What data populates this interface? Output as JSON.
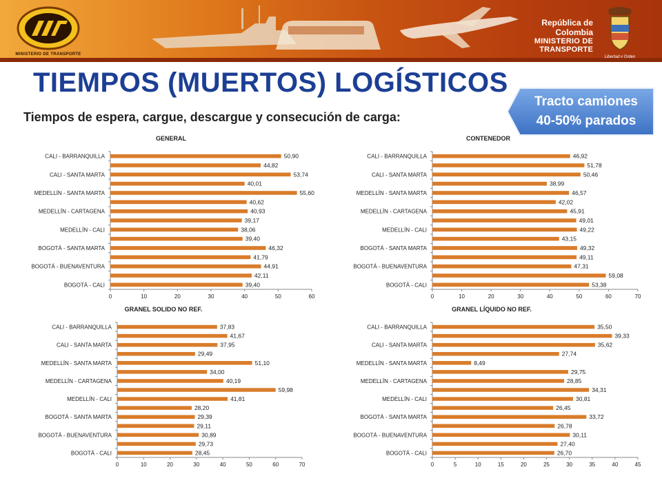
{
  "header": {
    "logo_caption": "MINISTERIO DE TRANSPORTE",
    "gov_line1": "República de Colombia",
    "gov_line2": "MINISTERIO DE TRANSPORTE",
    "crest_caption": "Libertad y Orden",
    "colors": {
      "banner": "#d4661a",
      "title": "#1c3f94",
      "bar": "#d97c2b",
      "callout": "#5b8fd4"
    }
  },
  "title": "TIEMPOS (MUERTOS) LOGÍSTICOS",
  "subtitle": "Tiempos de espera, cargue, descargue y consecución de carga:",
  "callout": {
    "line1": "Tracto camiones",
    "line2": "40-50% parados"
  },
  "chart_data": [
    {
      "type": "bar",
      "orientation": "horizontal",
      "title": "GENERAL",
      "categories": [
        "CALI - BARRANQUILLA",
        "",
        "CALI - SANTA MARTA",
        "",
        "MEDELLÍN - SANTA MARTA",
        "",
        "MEDELLÍN - CARTAGENA",
        "",
        "MEDELLÍN - CALI",
        "",
        "BOGOTÁ - SANTA MARTA",
        "",
        "BOGOTÁ - BUENAVENTURA",
        "",
        "BOGOTÁ - CALI"
      ],
      "values": [
        50.9,
        44.82,
        53.74,
        40.01,
        55.6,
        40.62,
        40.93,
        39.17,
        38.06,
        39.4,
        46.32,
        41.79,
        44.91,
        42.11,
        39.4
      ],
      "value_labels": [
        "50,90",
        "44,82",
        "53,74",
        "40,01",
        "55,60",
        "40,62",
        "40,93",
        "39,17",
        "38,06",
        "39,40",
        "46,32",
        "41,79",
        "44,91",
        "42,11",
        "39,40"
      ],
      "xlim": [
        0,
        60
      ],
      "xticks": [
        "0",
        "10",
        "20",
        "30",
        "40",
        "50",
        "60"
      ]
    },
    {
      "type": "bar",
      "orientation": "horizontal",
      "title": "CONTENEDOR",
      "categories": [
        "CALI - BARRANQUILLA",
        "",
        "CALI - SANTA MARTA",
        "",
        "MEDELLÍN - SANTA MARTA",
        "",
        "MEDELLÍN - CARTAGENA",
        "",
        "MEDELLÍN - CALI",
        "",
        "BOGOTÁ - SANTA MARTA",
        "",
        "BOGOTÁ - BUENAVENTURA",
        "",
        "BOGOTÁ - CALI"
      ],
      "values": [
        46.92,
        51.78,
        50.46,
        38.99,
        46.57,
        42.02,
        45.91,
        49.01,
        49.22,
        43.15,
        49.32,
        49.11,
        47.31,
        59.08,
        53.38
      ],
      "value_labels": [
        "46,92",
        "51,78",
        "50,46",
        "38,99",
        "46,57",
        "42,02",
        "45,91",
        "49,01",
        "49,22",
        "43,15",
        "49,32",
        "49,11",
        "47,31",
        "59,08",
        "53,38"
      ],
      "xlim": [
        0,
        70
      ],
      "xticks": [
        "0",
        "10",
        "20",
        "30",
        "40",
        "50",
        "60",
        "70"
      ]
    },
    {
      "type": "bar",
      "orientation": "horizontal",
      "title": "GRANEL SOLIDO NO REF.",
      "categories": [
        "CALI - BARRANQUILLA",
        "",
        "CALI - SANTA MARTA",
        "",
        "MEDELLÍN - SANTA MARTA",
        "",
        "MEDELLÍN - CARTAGENA",
        "",
        "MEDELLÍN - CALI",
        "",
        "BOGOTÁ - SANTA MARTA",
        "",
        "BOGOTÁ - BUENAVENTURA",
        "",
        "BOGOTÁ - CALI"
      ],
      "values": [
        37.83,
        41.67,
        37.95,
        29.49,
        51.1,
        34.0,
        40.19,
        59.98,
        41.81,
        28.2,
        29.39,
        29.11,
        30.89,
        29.73,
        28.45
      ],
      "value_labels": [
        "37,83",
        "41,67",
        "37,95",
        "29,49",
        "51,10",
        "34,00",
        "40,19",
        "59,98",
        "41,81",
        "28,20",
        "29,39",
        "29,11",
        "30,89",
        "29,73",
        "28,45"
      ],
      "xlim": [
        0,
        70
      ],
      "xticks": [
        "0",
        "10",
        "20",
        "30",
        "40",
        "50",
        "60",
        "70"
      ]
    },
    {
      "type": "bar",
      "orientation": "horizontal",
      "title": "GRANEL LÍQUIDO NO REF.",
      "categories": [
        "CALI - BARRANQUILLA",
        "",
        "CALI - SANTA MARTA",
        "",
        "MEDELLÍN - SANTA MARTA",
        "",
        "MEDELLÍN - CARTAGENA",
        "",
        "MEDELLÍN - CALI",
        "",
        "BOGOTÁ - SANTA MARTA",
        "",
        "BOGOTÁ - BUENAVENTURA",
        "",
        "BOGOTÁ - CALI"
      ],
      "values": [
        35.5,
        39.33,
        35.62,
        27.74,
        8.49,
        29.75,
        28.85,
        34.31,
        30.81,
        26.45,
        33.72,
        26.78,
        30.11,
        27.4,
        26.7
      ],
      "value_labels": [
        "35,50",
        "39,33",
        "35,62",
        "27,74",
        "8,49",
        "29,75",
        "28,85",
        "34,31",
        "30,81",
        "26,45",
        "33,72",
        "26,78",
        "30,11",
        "27,40",
        "26,70"
      ],
      "xlim": [
        0,
        45
      ],
      "xticks": [
        "0",
        "5",
        "10",
        "15",
        "20",
        "25",
        "30",
        "35",
        "40",
        "45"
      ]
    }
  ]
}
